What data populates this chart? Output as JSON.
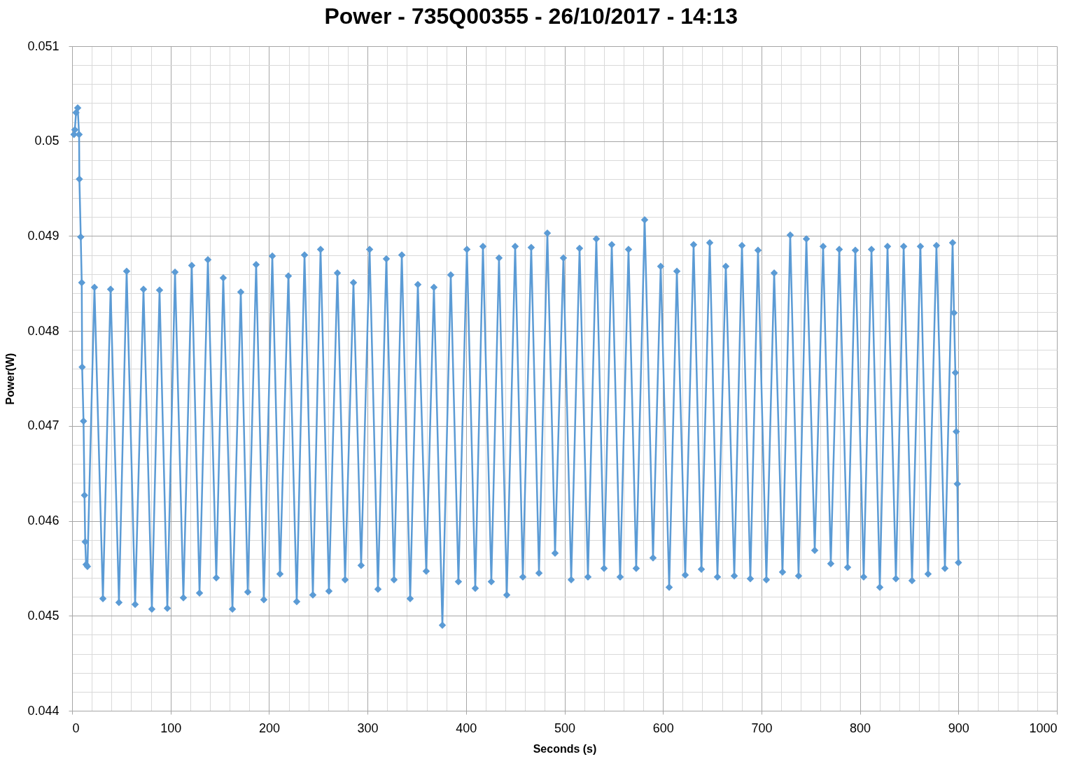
{
  "chart_data": {
    "type": "line",
    "title": "Power - 735Q00355 - 26/10/2017 - 14:13",
    "xlabel": "Seconds (s)",
    "ylabel": "Power(W)",
    "x": [
      1.9,
      2.8,
      4.0,
      5.7,
      7.1,
      7.4,
      8.8,
      9.8,
      10.2,
      11.6,
      12.6,
      13.3,
      14.2,
      15.6,
      22.7,
      31.3,
      39.1,
      47.6,
      55.4,
      64.0,
      72.5,
      81.0,
      88.8,
      96.7,
      104.5,
      113.0,
      121.5,
      129.4,
      137.9,
      146.4,
      153.5,
      162.8,
      171.3,
      178.4,
      186.9,
      194.7,
      203.3,
      211.1,
      219.6,
      228.1,
      236.0,
      244.5,
      252.3,
      260.8,
      269.4,
      277.2,
      285.7,
      293.5,
      302.1,
      310.6,
      319.1,
      326.9,
      334.8,
      343.3,
      351.1,
      359.6,
      367.4,
      376.0,
      384.5,
      392.3,
      400.9,
      409.4,
      417.2,
      425.7,
      433.5,
      441.4,
      449.9,
      457.7,
      466.2,
      474.1,
      482.6,
      490.4,
      498.9,
      506.8,
      515.3,
      523.8,
      532.3,
      540.2,
      548.0,
      556.5,
      565.0,
      572.8,
      581.4,
      589.9,
      597.7,
      606.3,
      614.1,
      622.6,
      631.1,
      639.0,
      647.5,
      655.3,
      663.8,
      672.4,
      680.2,
      688.7,
      696.5,
      705.0,
      712.9,
      721.4,
      729.2,
      737.7,
      745.6,
      754.1,
      762.6,
      770.4,
      779.0,
      787.5,
      795.3,
      803.8,
      811.7,
      820.2,
      828.0,
      836.5,
      844.4,
      852.9,
      861.4,
      869.2,
      877.7,
      886.3,
      894.1,
      895.5,
      896.9,
      897.8,
      898.9,
      900.0
    ],
    "series": [
      {
        "color": "#5b9bd5",
        "values": [
          0.05007,
          0.05012,
          0.0503,
          0.05035,
          0.05007,
          0.0496,
          0.04899,
          0.04851,
          0.04762,
          0.04705,
          0.04627,
          0.04578,
          0.04554,
          0.04552,
          0.04846,
          0.04518,
          0.04844,
          0.04514,
          0.04863,
          0.04512,
          0.04844,
          0.04507,
          0.04843,
          0.04508,
          0.04862,
          0.04519,
          0.04869,
          0.04524,
          0.04875,
          0.0454,
          0.04856,
          0.04507,
          0.04841,
          0.04525,
          0.0487,
          0.04517,
          0.04879,
          0.04544,
          0.04858,
          0.04515,
          0.0488,
          0.04522,
          0.04886,
          0.04526,
          0.04861,
          0.04538,
          0.04851,
          0.04553,
          0.04886,
          0.04528,
          0.04876,
          0.04538,
          0.0488,
          0.04518,
          0.04849,
          0.04547,
          0.04846,
          0.0449,
          0.04859,
          0.04536,
          0.04886,
          0.04529,
          0.04889,
          0.04536,
          0.04877,
          0.04522,
          0.04889,
          0.04541,
          0.04888,
          0.04545,
          0.04903,
          0.04566,
          0.04877,
          0.04538,
          0.04887,
          0.04541,
          0.04897,
          0.0455,
          0.04891,
          0.04541,
          0.04886,
          0.0455,
          0.04917,
          0.04561,
          0.04868,
          0.0453,
          0.04863,
          0.04543,
          0.04891,
          0.04549,
          0.04893,
          0.04541,
          0.04868,
          0.04542,
          0.0489,
          0.04539,
          0.04885,
          0.04538,
          0.04861,
          0.04546,
          0.04901,
          0.04542,
          0.04897,
          0.04569,
          0.04889,
          0.04555,
          0.04886,
          0.04551,
          0.04885,
          0.04541,
          0.04886,
          0.0453,
          0.04889,
          0.04539,
          0.04889,
          0.04537,
          0.04889,
          0.04544,
          0.0489,
          0.0455,
          0.04893,
          0.04819,
          0.04756,
          0.04694,
          0.04639,
          0.04556
        ]
      }
    ],
    "xlim": [
      0,
      1000
    ],
    "xticks": [
      0,
      {
        "value": 20,
        "label": null
      },
      {
        "value": 40,
        "label": null
      },
      {
        "value": 60,
        "label": null
      },
      {
        "value": 80,
        "label": null
      },
      100,
      {
        "value": 120,
        "label": null
      },
      {
        "value": 140,
        "label": null
      },
      {
        "value": 160,
        "label": null
      },
      {
        "value": 180,
        "label": null
      },
      200,
      {
        "value": 220,
        "label": null
      },
      {
        "value": 240,
        "label": null
      },
      {
        "value": 260,
        "label": null
      },
      {
        "value": 280,
        "label": null
      },
      300,
      {
        "value": 320,
        "label": null
      },
      {
        "value": 340,
        "label": null
      },
      {
        "value": 360,
        "label": null
      },
      {
        "value": 380,
        "label": null
      },
      400,
      {
        "value": 420,
        "label": null
      },
      {
        "value": 440,
        "label": null
      },
      {
        "value": 460,
        "label": null
      },
      {
        "value": 480,
        "label": null
      },
      500,
      {
        "value": 520,
        "label": null
      },
      {
        "value": 540,
        "label": null
      },
      {
        "value": 560,
        "label": null
      },
      {
        "value": 580,
        "label": null
      },
      600,
      {
        "value": 620,
        "label": null
      },
      {
        "value": 640,
        "label": null
      },
      {
        "value": 660,
        "label": null
      },
      {
        "value": 680,
        "label": null
      },
      700,
      {
        "value": 720,
        "label": null
      },
      {
        "value": 740,
        "label": null
      },
      {
        "value": 760,
        "label": null
      },
      {
        "value": 780,
        "label": null
      },
      800,
      {
        "value": 820,
        "label": null
      },
      {
        "value": 840,
        "label": null
      },
      {
        "value": 860,
        "label": null
      },
      {
        "value": 880,
        "label": null
      },
      900,
      {
        "value": 920,
        "label": null
      },
      {
        "value": 940,
        "label": null
      },
      {
        "value": 960,
        "label": null
      },
      {
        "value": 980,
        "label": null
      },
      1000
    ],
    "ylim": [
      0.044,
      0.051
    ],
    "yticks": [
      0.044,
      {
        "value": 0.0442,
        "label": null
      },
      {
        "value": 0.0444,
        "label": null
      },
      {
        "value": 0.0446,
        "label": null
      },
      {
        "value": 0.0448,
        "label": null
      },
      0.045,
      {
        "value": 0.0452,
        "label": null
      },
      {
        "value": 0.0454,
        "label": null
      },
      {
        "value": 0.0456,
        "label": null
      },
      {
        "value": 0.0458,
        "label": null
      },
      0.046,
      {
        "value": 0.0462,
        "label": null
      },
      {
        "value": 0.0464,
        "label": null
      },
      {
        "value": 0.0466,
        "label": null
      },
      {
        "value": 0.0468,
        "label": null
      },
      0.047,
      {
        "value": 0.0472,
        "label": null
      },
      {
        "value": 0.0474,
        "label": null
      },
      {
        "value": 0.0476,
        "label": null
      },
      {
        "value": 0.0478,
        "label": null
      },
      0.048,
      {
        "value": 0.0482,
        "label": null
      },
      {
        "value": 0.0484,
        "label": null
      },
      {
        "value": 0.0486,
        "label": null
      },
      {
        "value": 0.0488,
        "label": null
      },
      0.049,
      {
        "value": 0.0492,
        "label": null
      },
      {
        "value": 0.0494,
        "label": null
      },
      {
        "value": 0.0496,
        "label": null
      },
      {
        "value": 0.0498,
        "label": null
      },
      0.05,
      {
        "value": 0.0502,
        "label": null
      },
      {
        "value": 0.0504,
        "label": null
      },
      {
        "value": 0.0506,
        "label": null
      },
      {
        "value": 0.0508,
        "label": null
      },
      0.051
    ],
    "grid": true,
    "marker": "diamond",
    "line_style": "solid"
  }
}
